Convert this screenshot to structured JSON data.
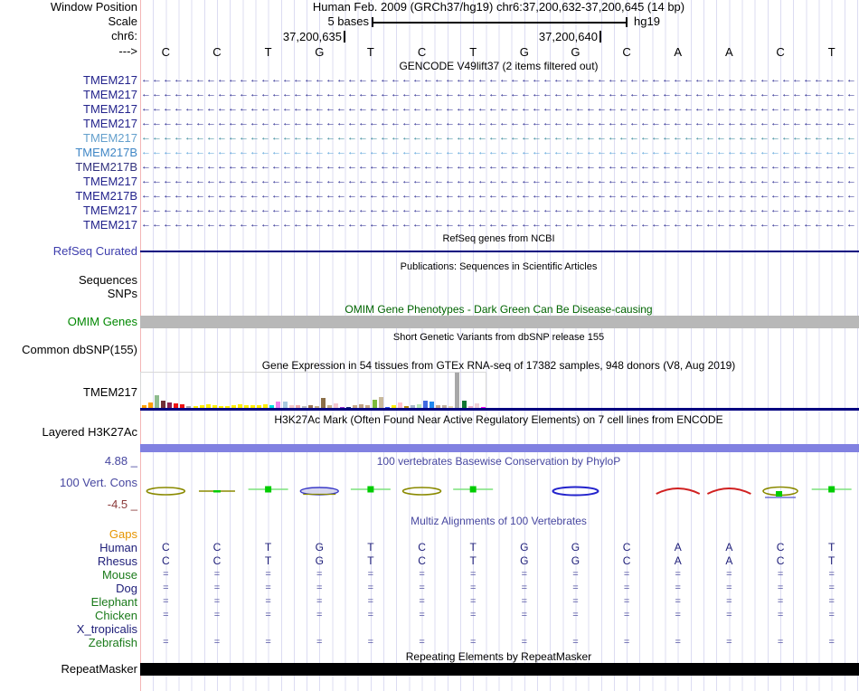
{
  "header": {
    "window_position_label": "Window Position",
    "title": "Human Feb. 2009 (GRCh37/hg19)   chr6:37,200,632-37,200,645 (14 bp)",
    "scale_label": "Scale",
    "scale_text": "5 bases",
    "genome": "hg19",
    "chrom_label": "chr6:",
    "tick_labels": [
      "37,200,635",
      "37,200,640"
    ],
    "direction_label": "--->",
    "bases": [
      "C",
      "C",
      "T",
      "G",
      "T",
      "C",
      "T",
      "G",
      "G",
      "C",
      "A",
      "A",
      "C",
      "T"
    ]
  },
  "gencode": {
    "title": "GENCODE V49lift37 (2 items filtered out)",
    "arrow_char": "←",
    "genes": [
      {
        "label": "TMEM217",
        "label_color": "#23238c",
        "arrow_color": "#23238c"
      },
      {
        "label": "TMEM217",
        "label_color": "#23238c",
        "arrow_color": "#23238c"
      },
      {
        "label": "TMEM217",
        "label_color": "#23238c",
        "arrow_color": "#23238c"
      },
      {
        "label": "TMEM217",
        "label_color": "#23238c",
        "arrow_color": "#23238c"
      },
      {
        "label": "TMEM217",
        "label_color": "#64a0cd",
        "arrow_color": "#2e8294"
      },
      {
        "label": "TMEM217B",
        "label_color": "#4087c6",
        "arrow_color": "#55a0d8"
      },
      {
        "label": "TMEM217B",
        "label_color": "#32327e",
        "arrow_color": "#23238c"
      },
      {
        "label": "TMEM217",
        "label_color": "#23238c",
        "arrow_color": "#23238c"
      },
      {
        "label": "TMEM217B",
        "label_color": "#23238c",
        "arrow_color": "#23238c"
      },
      {
        "label": "TMEM217",
        "label_color": "#23238c",
        "arrow_color": "#23238c"
      },
      {
        "label": "TMEM217",
        "label_color": "#23238c",
        "arrow_color": "#23238c"
      }
    ]
  },
  "refseq": {
    "title": "RefSeq genes from NCBI",
    "label": "RefSeq Curated",
    "label_color": "#3c3cac",
    "line_color": "#000080"
  },
  "publications": {
    "title": "Publications: Sequences in Scientific Articles",
    "sequences_label": "Sequences",
    "snps_label": "SNPs"
  },
  "omim": {
    "title": "OMIM Gene Phenotypes - Dark Green Can Be Disease-causing",
    "title_color": "#006400",
    "label": "OMIM Genes",
    "label_color": "#008800",
    "bar_color": "#b8b8b8"
  },
  "dbsnp": {
    "title": "Short Genetic Variants from dbSNP release 155",
    "label": "Common dbSNP(155)"
  },
  "gtex": {
    "title": "Gene Expression in 54 tissues from GTEx RNA-seq of 17382 samples, 948 donors (V8, Aug 2019)",
    "label": "TMEM217",
    "baseline_color": "#000080",
    "chart_data": {
      "type": "bar",
      "title": "Gene Expression in 54 tissues from GTEx RNA-seq of 17382 samples, 948 donors (V8, Aug 2019)",
      "gene": "TMEM217",
      "bars": [
        {
          "h": 4,
          "c": "#ff9f00"
        },
        {
          "h": 7,
          "c": "#ff9f00"
        },
        {
          "h": 15,
          "c": "#8fbc8f"
        },
        {
          "h": 9,
          "c": "#722f37"
        },
        {
          "h": 7,
          "c": "#8b2252"
        },
        {
          "h": 6,
          "c": "#ee1111"
        },
        {
          "h": 5,
          "c": "#ee1111"
        },
        {
          "h": 3,
          "c": "#aaaaaa"
        },
        {
          "h": 3,
          "c": "#ffee00"
        },
        {
          "h": 4,
          "c": "#ffee00"
        },
        {
          "h": 5,
          "c": "#ffee00"
        },
        {
          "h": 4,
          "c": "#ffee00"
        },
        {
          "h": 3,
          "c": "#ffee00"
        },
        {
          "h": 3,
          "c": "#ffee00"
        },
        {
          "h": 4,
          "c": "#ffee00"
        },
        {
          "h": 5,
          "c": "#ffee00"
        },
        {
          "h": 4,
          "c": "#ffee00"
        },
        {
          "h": 4,
          "c": "#ffee00"
        },
        {
          "h": 4,
          "c": "#ffee00"
        },
        {
          "h": 5,
          "c": "#ffee00"
        },
        {
          "h": 4,
          "c": "#00dddd"
        },
        {
          "h": 8,
          "c": "#ee82ee"
        },
        {
          "h": 8,
          "c": "#a6c8e0"
        },
        {
          "h": 4,
          "c": "#f4c8c8"
        },
        {
          "h": 4,
          "c": "#eeaaaa"
        },
        {
          "h": 3,
          "c": "#bbbbbb"
        },
        {
          "h": 4,
          "c": "#9b7653"
        },
        {
          "h": 3,
          "c": "#c8b088"
        },
        {
          "h": 12,
          "c": "#8b6f47"
        },
        {
          "h": 4,
          "c": "#c8b088"
        },
        {
          "h": 6,
          "c": "#f4c8d0"
        },
        {
          "h": 2,
          "c": "#9932cc"
        },
        {
          "h": 2,
          "c": "#223377"
        },
        {
          "h": 4,
          "c": "#c8a888"
        },
        {
          "h": 5,
          "c": "#c0a080"
        },
        {
          "h": 4,
          "c": "#c8a888"
        },
        {
          "h": 10,
          "c": "#7cbb3c"
        },
        {
          "h": 13,
          "c": "#c8b99c"
        },
        {
          "h": 2,
          "c": "#3355ee"
        },
        {
          "h": 4,
          "c": "#ffee00"
        },
        {
          "h": 7,
          "c": "#ffc0cb"
        },
        {
          "h": 3,
          "c": "#b8860b"
        },
        {
          "h": 4,
          "c": "#a8b8c8"
        },
        {
          "h": 5,
          "c": "#b8e8b8"
        },
        {
          "h": 9,
          "c": "#4169e1"
        },
        {
          "h": 8,
          "c": "#2288ee"
        },
        {
          "h": 4,
          "c": "#c8a888"
        },
        {
          "h": 4,
          "c": "#c0b0a0"
        },
        {
          "h": 3,
          "c": "#e8d8b0"
        },
        {
          "h": 40,
          "c": "#a8a8a8"
        },
        {
          "h": 9,
          "c": "#117733"
        },
        {
          "h": 3,
          "c": "#eeb0c8"
        },
        {
          "h": 6,
          "c": "#f0d0d8"
        },
        {
          "h": 2,
          "c": "#ff00ff"
        }
      ]
    }
  },
  "h3k27ac": {
    "title": "H3K27Ac Mark (Often Found Near Active Regulatory Elements) on 7 cell lines from ENCODE",
    "label": "Layered H3K27Ac",
    "bar_color": "#8181e1"
  },
  "conservation": {
    "title": "100 vertebrates Basewise Conservation by PhyloP",
    "title_color": "#4747a0",
    "label": "100 Vert. Cons",
    "label_color": "#4747a0",
    "max_label": "4.88 _",
    "min_label": "-4.5 _",
    "min_color": "#8b3a3a",
    "glyphs": [
      {
        "type": "ellipse",
        "stroke": "#8a8a00"
      },
      {
        "type": "dash",
        "stroke": "#8a8a00"
      },
      {
        "type": "gline"
      },
      {
        "type": "ellipse_pale",
        "stroke": "#3a3ac8",
        "fill": "#d8d8ee"
      },
      {
        "type": "gline"
      },
      {
        "type": "ellipse",
        "stroke": "#8a8a00"
      },
      {
        "type": "gline"
      },
      {
        "type": "none"
      },
      {
        "type": "ellipse_big",
        "stroke": "#2222cc"
      },
      {
        "type": "none"
      },
      {
        "type": "arc",
        "stroke": "#d02020"
      },
      {
        "type": "arc",
        "stroke": "#d02020"
      },
      {
        "type": "ellipse_mix",
        "stroke": "#8a8a00"
      },
      {
        "type": "gline"
      }
    ]
  },
  "multiz": {
    "title": "Multiz Alignments of 100 Vertebrates",
    "title_color": "#4747a0",
    "rows": [
      {
        "label": "Gaps",
        "color": "#e69500",
        "cells": []
      },
      {
        "label": "Human",
        "color": "#20207a",
        "cells": [
          "C",
          "C",
          "T",
          "G",
          "T",
          "C",
          "T",
          "G",
          "G",
          "C",
          "A",
          "A",
          "C",
          "T"
        ]
      },
      {
        "label": "Rhesus",
        "color": "#20207a",
        "cells": [
          "C",
          "C",
          "T",
          "G",
          "T",
          "C",
          "T",
          "G",
          "G",
          "C",
          "A",
          "A",
          "C",
          "T"
        ]
      },
      {
        "label": "Mouse",
        "color": "#1a7a1a",
        "cells": [
          "=",
          "=",
          "=",
          "=",
          "=",
          "=",
          "=",
          "=",
          "=",
          "=",
          "=",
          "=",
          "=",
          "="
        ]
      },
      {
        "label": "Dog",
        "color": "#20207a",
        "cells": [
          "=",
          "=",
          "=",
          "=",
          "=",
          "=",
          "=",
          "=",
          "=",
          "=",
          "=",
          "=",
          "=",
          "="
        ]
      },
      {
        "label": "Elephant",
        "color": "#1a7a1a",
        "cells": [
          "=",
          "=",
          "=",
          "=",
          "=",
          "=",
          "=",
          "=",
          "=",
          "=",
          "=",
          "=",
          "=",
          "="
        ]
      },
      {
        "label": "Chicken",
        "color": "#1a7a1a",
        "cells": [
          "=",
          "=",
          "=",
          "=",
          "=",
          "=",
          "=",
          "=",
          "=",
          "=",
          "=",
          "=",
          "=",
          "="
        ]
      },
      {
        "label": "X_tropicalis",
        "color": "#20207a",
        "cells": []
      },
      {
        "label": "Zebrafish",
        "color": "#1a7a1a",
        "cells": [
          "=",
          "=",
          "=",
          "=",
          "=",
          "=",
          "=",
          "=",
          "=",
          "=",
          "=",
          "=",
          "=",
          "="
        ]
      }
    ]
  },
  "repeatmasker": {
    "title": "Repeating Elements by RepeatMasker",
    "label": "RepeatMasker",
    "bar_color": "#000000"
  }
}
